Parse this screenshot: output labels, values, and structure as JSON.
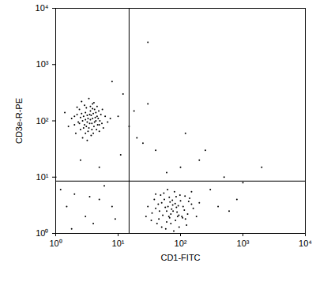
{
  "chart_data": {
    "type": "scatter",
    "x_label": "CD1-FITC",
    "y_label": "CD3e-R-PE",
    "log": true,
    "color": "#000000",
    "xlim": [
      1,
      10000
    ],
    "ylim": [
      1,
      10000
    ],
    "xticks": [
      {
        "value": 1,
        "label": "10⁰"
      },
      {
        "value": 10,
        "label": "10¹"
      },
      {
        "value": 100,
        "label": "10²"
      },
      {
        "value": 1000,
        "label": "10³"
      },
      {
        "value": 10000,
        "label": "10⁴"
      }
    ],
    "yticks": [
      {
        "value": 1,
        "label": "10⁰"
      },
      {
        "value": 10,
        "label": "10¹"
      },
      {
        "value": 100,
        "label": "10²"
      },
      {
        "value": 1000,
        "label": "10³"
      },
      {
        "value": 10000,
        "label": "10⁴"
      }
    ],
    "quadrant": {
      "x": 15,
      "y": 8.5
    },
    "x": [
      3.2,
      2.8,
      4.1,
      3.6,
      2.5,
      4.8,
      3.0,
      5.5,
      2.2,
      3.9,
      3.4,
      4.4,
      2.7,
      3.1,
      5.0,
      2.0,
      4.6,
      3.7,
      2.4,
      6.2,
      3.3,
      2.9,
      4.2,
      3.5,
      1.8,
      5.8,
      4.0,
      2.6,
      3.8,
      4.9,
      3.0,
      2.3,
      4.5,
      3.6,
      2.1,
      5.3,
      3.2,
      4.3,
      2.8,
      3.9,
      6.8,
      1.6,
      3.4,
      4.7,
      2.5,
      3.7,
      5.1,
      2.9,
      3.1,
      4.0,
      1.4,
      2.7,
      3.5,
      4.4,
      5.6,
      2.2,
      3.3,
      4.1,
      2.6,
      3.8,
      7.5,
      3.0,
      4.6,
      2.4,
      3.6,
      5.0,
      2.0,
      3.9,
      4.2,
      3.2,
      60,
      75,
      45,
      90,
      55,
      110,
      40,
      70,
      85,
      130,
      50,
      65,
      95,
      35,
      80,
      120,
      58,
      100,
      48,
      72,
      150,
      30,
      88,
      62,
      105,
      42,
      68,
      140,
      52,
      78,
      115,
      38,
      92,
      57,
      180,
      66,
      83,
      46,
      125,
      74,
      28,
      98,
      60,
      86,
      54,
      160,
      70,
      44,
      108,
      63,
      200,
      76,
      34,
      94,
      50,
      135,
      82,
      40,
      67,
      118,
      20,
      40,
      100,
      200,
      500,
      30,
      15,
      1.5,
      2,
      3,
      5,
      8,
      1.2,
      4,
      6,
      25,
      300,
      800,
      400,
      1000,
      60,
      10,
      12,
      8,
      30,
      120,
      2.5,
      5,
      9,
      3.5,
      1,
      18,
      250,
      2000,
      150,
      600,
      1.8,
      11
    ],
    "values": [
      95,
      120,
      80,
      150,
      70,
      110,
      60,
      90,
      130,
      200,
      75,
      140,
      100,
      170,
      65,
      85,
      180,
      55,
      160,
      120,
      110,
      85,
      95,
      130,
      110,
      75,
      60,
      220,
      90,
      150,
      140,
      95,
      70,
      105,
      60,
      130,
      45,
      115,
      75,
      165,
      95,
      80,
      250,
      85,
      115,
      125,
      100,
      190,
      80,
      135,
      140,
      50,
      90,
      100,
      160,
      175,
      65,
      210,
      135,
      70,
      110,
      105,
      120,
      90,
      180,
      85,
      120,
      110,
      160,
      125,
      2.5,
      3.2,
      1.8,
      2.0,
      4.0,
      3.0,
      2.8,
      1.5,
      4.5,
      2.2,
      3.5,
      2.0,
      1.3,
      2.3,
      5.5,
      1.8,
      1.2,
      3.8,
      4.8,
      2.7,
      3.3,
      3.0,
      2.4,
      6.0,
      2.0,
      1.5,
      3.6,
      4.2,
      2.1,
      1.1,
      2.6,
      4.0,
      3.1,
      2.9,
      2.0,
      4.4,
      1.7,
      2.5,
      1.4,
      3.9,
      2.0,
      4.8,
      1.6,
      2.9,
      5.2,
      2.8,
      2.2,
      3.3,
      1.9,
      3.0,
      3.5,
      2.5,
      1.7,
      2.1,
      1.3,
      3.7,
      3.4,
      5.0,
      1.9,
      4.6,
      50,
      30,
      15,
      20,
      10,
      200,
      80,
      3,
      5,
      2,
      4,
      3,
      6,
      1.5,
      7,
      40,
      6,
      4,
      3,
      8,
      12,
      120,
      300,
      500,
      2500,
      60,
      20,
      15,
      1.8,
      4.5,
      10,
      150,
      30,
      15,
      5.5,
      2.5,
      1.2,
      25
    ]
  }
}
